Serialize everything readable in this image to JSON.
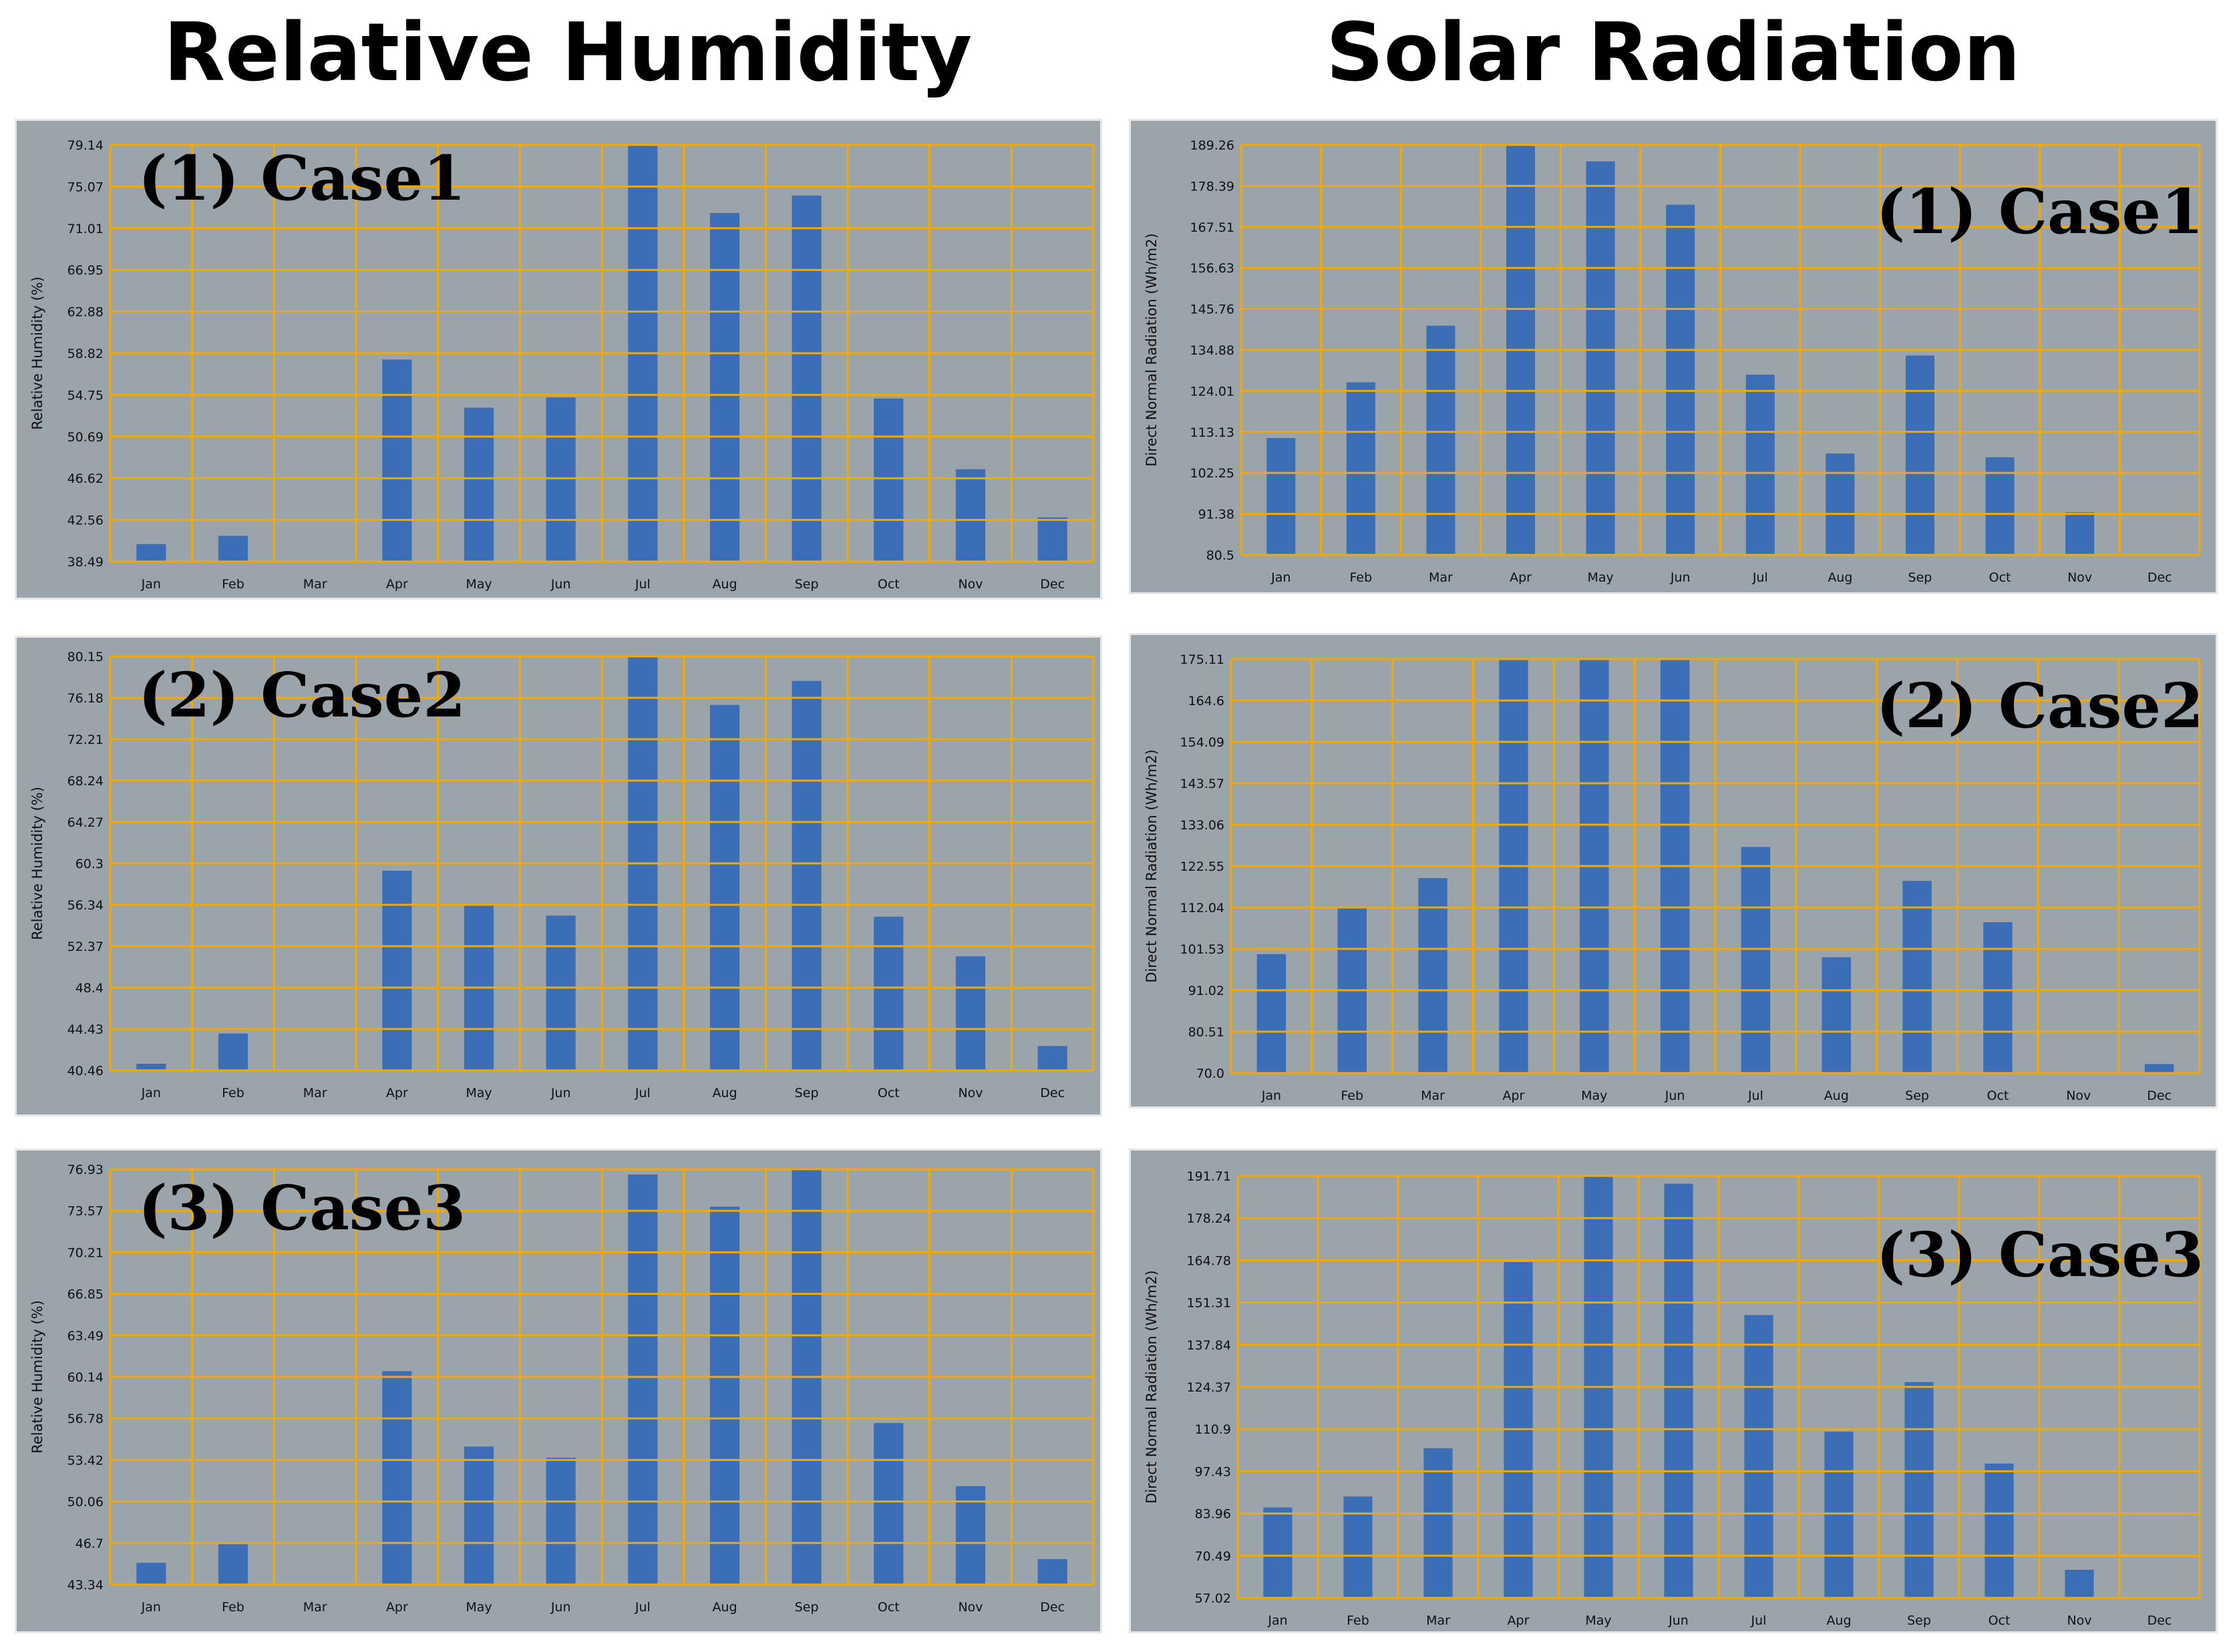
{
  "titles": {
    "left": "Relative Humidity",
    "right": "Solar Radiation"
  },
  "colors": {
    "panel_bg": "#9ba3ab",
    "plot_bg": "#9ba3ab",
    "grid": "#f2a900",
    "bar": "#3c6eb8",
    "text": "#111111"
  },
  "chart_data": [
    {
      "type": "bar",
      "title": "(1) Case1",
      "ylabel": "Relative Humidity (%)",
      "categories": [
        "Jan",
        "Feb",
        "Mar",
        "Apr",
        "May",
        "Jun",
        "Jul",
        "Aug",
        "Sep",
        "Oct",
        "Nov",
        "Dec"
      ],
      "yticks": [
        "38.49",
        "42.56",
        "46.62",
        "50.69",
        "54.75",
        "58.82",
        "62.88",
        "66.95",
        "71.01",
        "75.07",
        "79.14"
      ],
      "ylim": [
        38.49,
        79.14
      ],
      "values": [
        40.2,
        41.0,
        null,
        58.2,
        53.5,
        54.5,
        79.1,
        72.5,
        74.2,
        54.4,
        47.5,
        42.8
      ]
    },
    {
      "type": "bar",
      "title": "(2) Case2",
      "ylabel": "Relative Humidity (%)",
      "categories": [
        "Jan",
        "Feb",
        "Mar",
        "Apr",
        "May",
        "Jun",
        "Jul",
        "Aug",
        "Sep",
        "Oct",
        "Nov",
        "Dec"
      ],
      "yticks": [
        "40.46",
        "44.43",
        "48.4",
        "52.37",
        "56.34",
        "60.3",
        "64.27",
        "68.24",
        "72.21",
        "76.18",
        "80.15"
      ],
      "ylim": [
        40.46,
        80.15
      ],
      "values": [
        41.1,
        44.0,
        null,
        59.6,
        56.3,
        55.3,
        80.15,
        75.5,
        77.8,
        55.2,
        51.4,
        42.8
      ]
    },
    {
      "type": "bar",
      "title": "(3) Case3",
      "ylabel": "Relative Humidity (%)",
      "categories": [
        "Jan",
        "Feb",
        "Mar",
        "Apr",
        "May",
        "Jun",
        "Jul",
        "Aug",
        "Sep",
        "Oct",
        "Nov",
        "Dec"
      ],
      "yticks": [
        "43.34",
        "46.7",
        "50.06",
        "53.42",
        "56.78",
        "60.14",
        "63.49",
        "66.85",
        "70.21",
        "73.57",
        "76.93"
      ],
      "ylim": [
        43.34,
        76.93
      ],
      "values": [
        45.1,
        46.6,
        null,
        60.6,
        54.5,
        53.6,
        76.5,
        73.9,
        76.9,
        56.4,
        51.3,
        45.4
      ]
    },
    {
      "type": "bar",
      "title": "(1) Case1",
      "ylabel": "Direct Normal Radiation (Wh/m2)",
      "categories": [
        "Jan",
        "Feb",
        "Mar",
        "Apr",
        "May",
        "Jun",
        "Jul",
        "Aug",
        "Sep",
        "Oct",
        "Nov",
        "Dec"
      ],
      "yticks": [
        "80.5",
        "91.38",
        "102.25",
        "113.13",
        "124.01",
        "134.88",
        "145.76",
        "156.63",
        "167.51",
        "178.39",
        "189.26"
      ],
      "ylim": [
        80.5,
        189.26
      ],
      "values": [
        111.5,
        126.3,
        141.3,
        189.26,
        184.9,
        173.4,
        128.3,
        107.4,
        133.4,
        106.4,
        91.8,
        null
      ]
    },
    {
      "type": "bar",
      "title": "(2) Case2",
      "ylabel": "Direct Normal Radiation (Wh/m2)",
      "categories": [
        "Jan",
        "Feb",
        "Mar",
        "Apr",
        "May",
        "Jun",
        "Jul",
        "Aug",
        "Sep",
        "Oct",
        "Nov",
        "Dec"
      ],
      "yticks": [
        "70.0",
        "80.51",
        "91.02",
        "101.53",
        "112.04",
        "122.55",
        "133.06",
        "143.57",
        "154.09",
        "164.6",
        "175.11"
      ],
      "ylim": [
        70.0,
        175.11
      ],
      "values": [
        100.2,
        112.2,
        119.5,
        175.11,
        175.11,
        175.11,
        127.4,
        99.4,
        118.8,
        108.3,
        null,
        72.3
      ]
    },
    {
      "type": "bar",
      "title": "(3) Case3",
      "ylabel": "Direct Normal Radiation (Wh/m2)",
      "categories": [
        "Jan",
        "Feb",
        "Mar",
        "Apr",
        "May",
        "Jun",
        "Jul",
        "Aug",
        "Sep",
        "Oct",
        "Nov",
        "Dec"
      ],
      "yticks": [
        "57.02",
        "70.49",
        "83.96",
        "97.43",
        "110.9",
        "124.37",
        "137.84",
        "151.31",
        "164.78",
        "178.24",
        "191.71"
      ],
      "ylim": [
        57.02,
        191.71
      ],
      "values": [
        85.9,
        89.4,
        104.8,
        164.2,
        191.71,
        189.2,
        147.3,
        110.1,
        125.9,
        99.9,
        66.0,
        null
      ]
    }
  ]
}
